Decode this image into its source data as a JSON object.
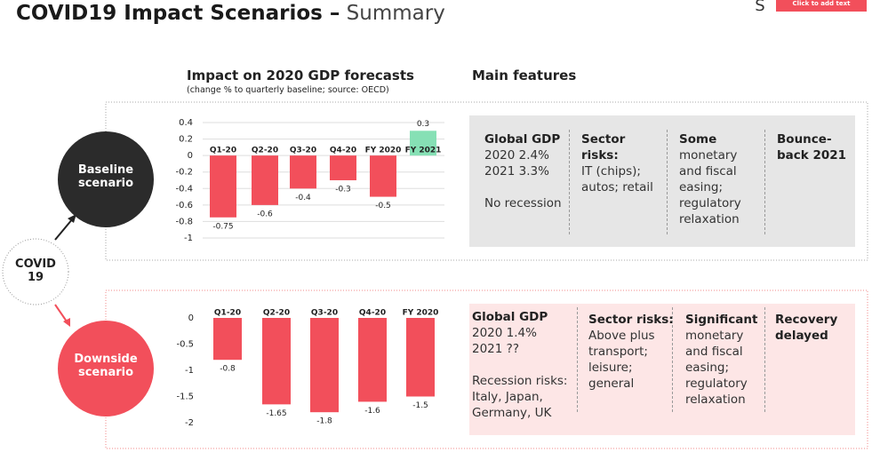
{
  "header": {
    "title_bold": "COVID19 Impact Scenarios –",
    "title_light": "Summary",
    "placeholder": "Click to add text"
  },
  "charts_heading": {
    "title": "Impact on 2020 GDP forecasts",
    "subtitle": "(change % to quarterly baseline; source: OECD)"
  },
  "features_heading": "Main features",
  "covid_node": "COVID 19",
  "scenarios": [
    {
      "name": "Baseline scenario",
      "features": [
        {
          "heading": "Global GDP",
          "blocks": [
            [
              "2020 2.4%",
              "2021 3.3%"
            ],
            [
              "No recession"
            ]
          ]
        },
        {
          "heading": "Sector risks:",
          "blocks": [
            [
              "IT (chips); autos; retail"
            ]
          ]
        },
        {
          "heading": "Some",
          "blocks": [
            [
              "monetary and fiscal easing; regulatory relaxation"
            ]
          ]
        },
        {
          "heading": "Bounce-back 2021"
        }
      ]
    },
    {
      "name": "Downside scenario",
      "features": [
        {
          "heading": "Global GDP",
          "blocks": [
            [
              "2020 1.4%",
              "2021 ??"
            ],
            [
              "Recession risks: Italy, Japan, Germany, UK"
            ]
          ]
        },
        {
          "heading": "Sector risks:",
          "blocks": [
            [
              "Above plus transport; leisure; general"
            ]
          ]
        },
        {
          "heading": "Significant",
          "blocks": [
            [
              "monetary and fiscal easing; regulatory relaxation"
            ]
          ]
        },
        {
          "heading": "Recovery delayed"
        }
      ]
    }
  ],
  "chart_data": [
    {
      "type": "bar",
      "categories": [
        "Q1-20",
        "Q2-20",
        "Q3-20",
        "Q4-20",
        "FY 2020",
        "FY 2021"
      ],
      "values": [
        -0.75,
        -0.6,
        -0.4,
        -0.3,
        -0.5,
        0.3
      ],
      "colors": [
        "#f24f5b",
        "#f24f5b",
        "#f24f5b",
        "#f24f5b",
        "#f24f5b",
        "#86e0b5"
      ],
      "ylim": [
        -1,
        0.4
      ],
      "yticks": [
        0.4,
        0.2,
        0,
        -0.2,
        -0.4,
        -0.6,
        -0.8,
        -1
      ],
      "grid": true
    },
    {
      "type": "bar",
      "categories": [
        "Q1-20",
        "Q2-20",
        "Q3-20",
        "Q4-20",
        "FY 2020"
      ],
      "values": [
        -0.8,
        -1.65,
        -1.8,
        -1.6,
        -1.5
      ],
      "colors": [
        "#f24f5b",
        "#f24f5b",
        "#f24f5b",
        "#f24f5b",
        "#f24f5b"
      ],
      "ylim": [
        -2,
        0
      ],
      "yticks": [
        0,
        -0.5,
        -1,
        -1.5,
        -2
      ],
      "grid": false
    }
  ]
}
